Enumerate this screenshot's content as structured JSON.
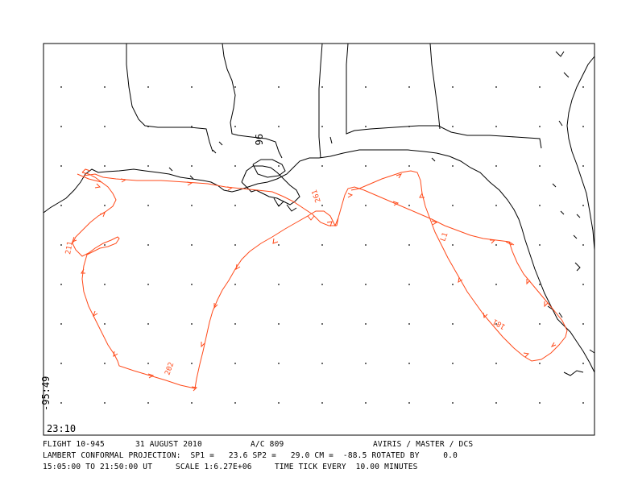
{
  "map": {
    "corner_lon": "-95:49",
    "corner_lat": "23:10",
    "ticks": [
      "96",
      "261",
      "211",
      "L1",
      "181",
      "202"
    ],
    "colors": {
      "track": "#ff4a1a",
      "coast": "#000000",
      "frame": "#000000"
    }
  },
  "footer": {
    "flight": "FLIGHT 10-945",
    "date": "31 AUGUST 2010",
    "aircraft": "A/C 809",
    "instruments": "AVIRIS / MASTER / DCS",
    "projection": "LAMBERT CONFORMAL PROJECTION:  SP1 =   23.6 SP2 =   29.0 CM =  -88.5 ROTATED BY     0.0",
    "time_range": "15:05:00 TO 21:50:00 UT",
    "scale": "SCALE 1:6.27E+06",
    "time_tick": "TIME TICK EVERY  10.00 MINUTES"
  }
}
